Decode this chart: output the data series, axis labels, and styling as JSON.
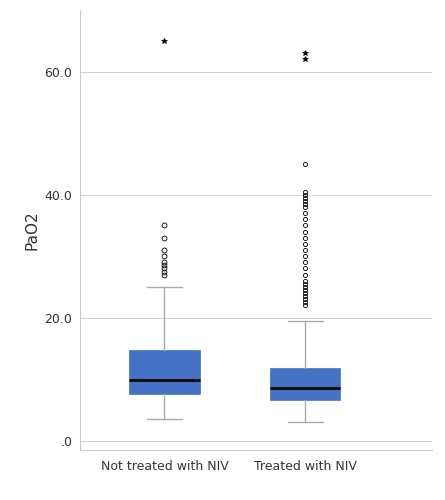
{
  "groups": [
    "Not treated with NIV",
    "Treated with NIV"
  ],
  "box_color": "#4472C4",
  "box_edge_color": "#4472C4",
  "median_color": "black",
  "whisker_color": "#aaaaaa",
  "cap_color": "#aaaaaa",
  "background_color": "#ffffff",
  "grid_color": "#d0d0d0",
  "ylabel": "PaO2",
  "ylim": [
    -1.5,
    70
  ],
  "yticks": [
    0.0,
    20.0,
    40.0,
    60.0
  ],
  "yticklabels": [
    ".0",
    "20.0",
    "40.0",
    "60.0"
  ],
  "group1": {
    "median": 9.8,
    "q1": 7.6,
    "q3": 14.7,
    "whisker_low": 3.5,
    "whisker_high": 25.0,
    "outliers_circle": [
      27.0,
      27.5,
      28.0,
      28.5,
      29.0,
      30.0,
      31.0,
      33.0,
      35.0
    ],
    "outliers_star": [
      65.0
    ]
  },
  "group2": {
    "median": 8.6,
    "q1": 6.7,
    "q3": 11.9,
    "whisker_low": 3.0,
    "whisker_high": 19.5,
    "outliers_circle": [
      22.0,
      22.5,
      23.0,
      23.5,
      24.0,
      24.5,
      25.0,
      25.5,
      26.0,
      27.0,
      28.0,
      29.0,
      30.0,
      31.0,
      32.0,
      33.0,
      34.0,
      35.0,
      36.0,
      37.0,
      38.0,
      38.5,
      39.0,
      39.5,
      40.0,
      40.5,
      45.0
    ],
    "outliers_star": [
      62.0,
      63.0
    ]
  },
  "figsize": [
    4.45,
    5.0
  ],
  "dpi": 100
}
